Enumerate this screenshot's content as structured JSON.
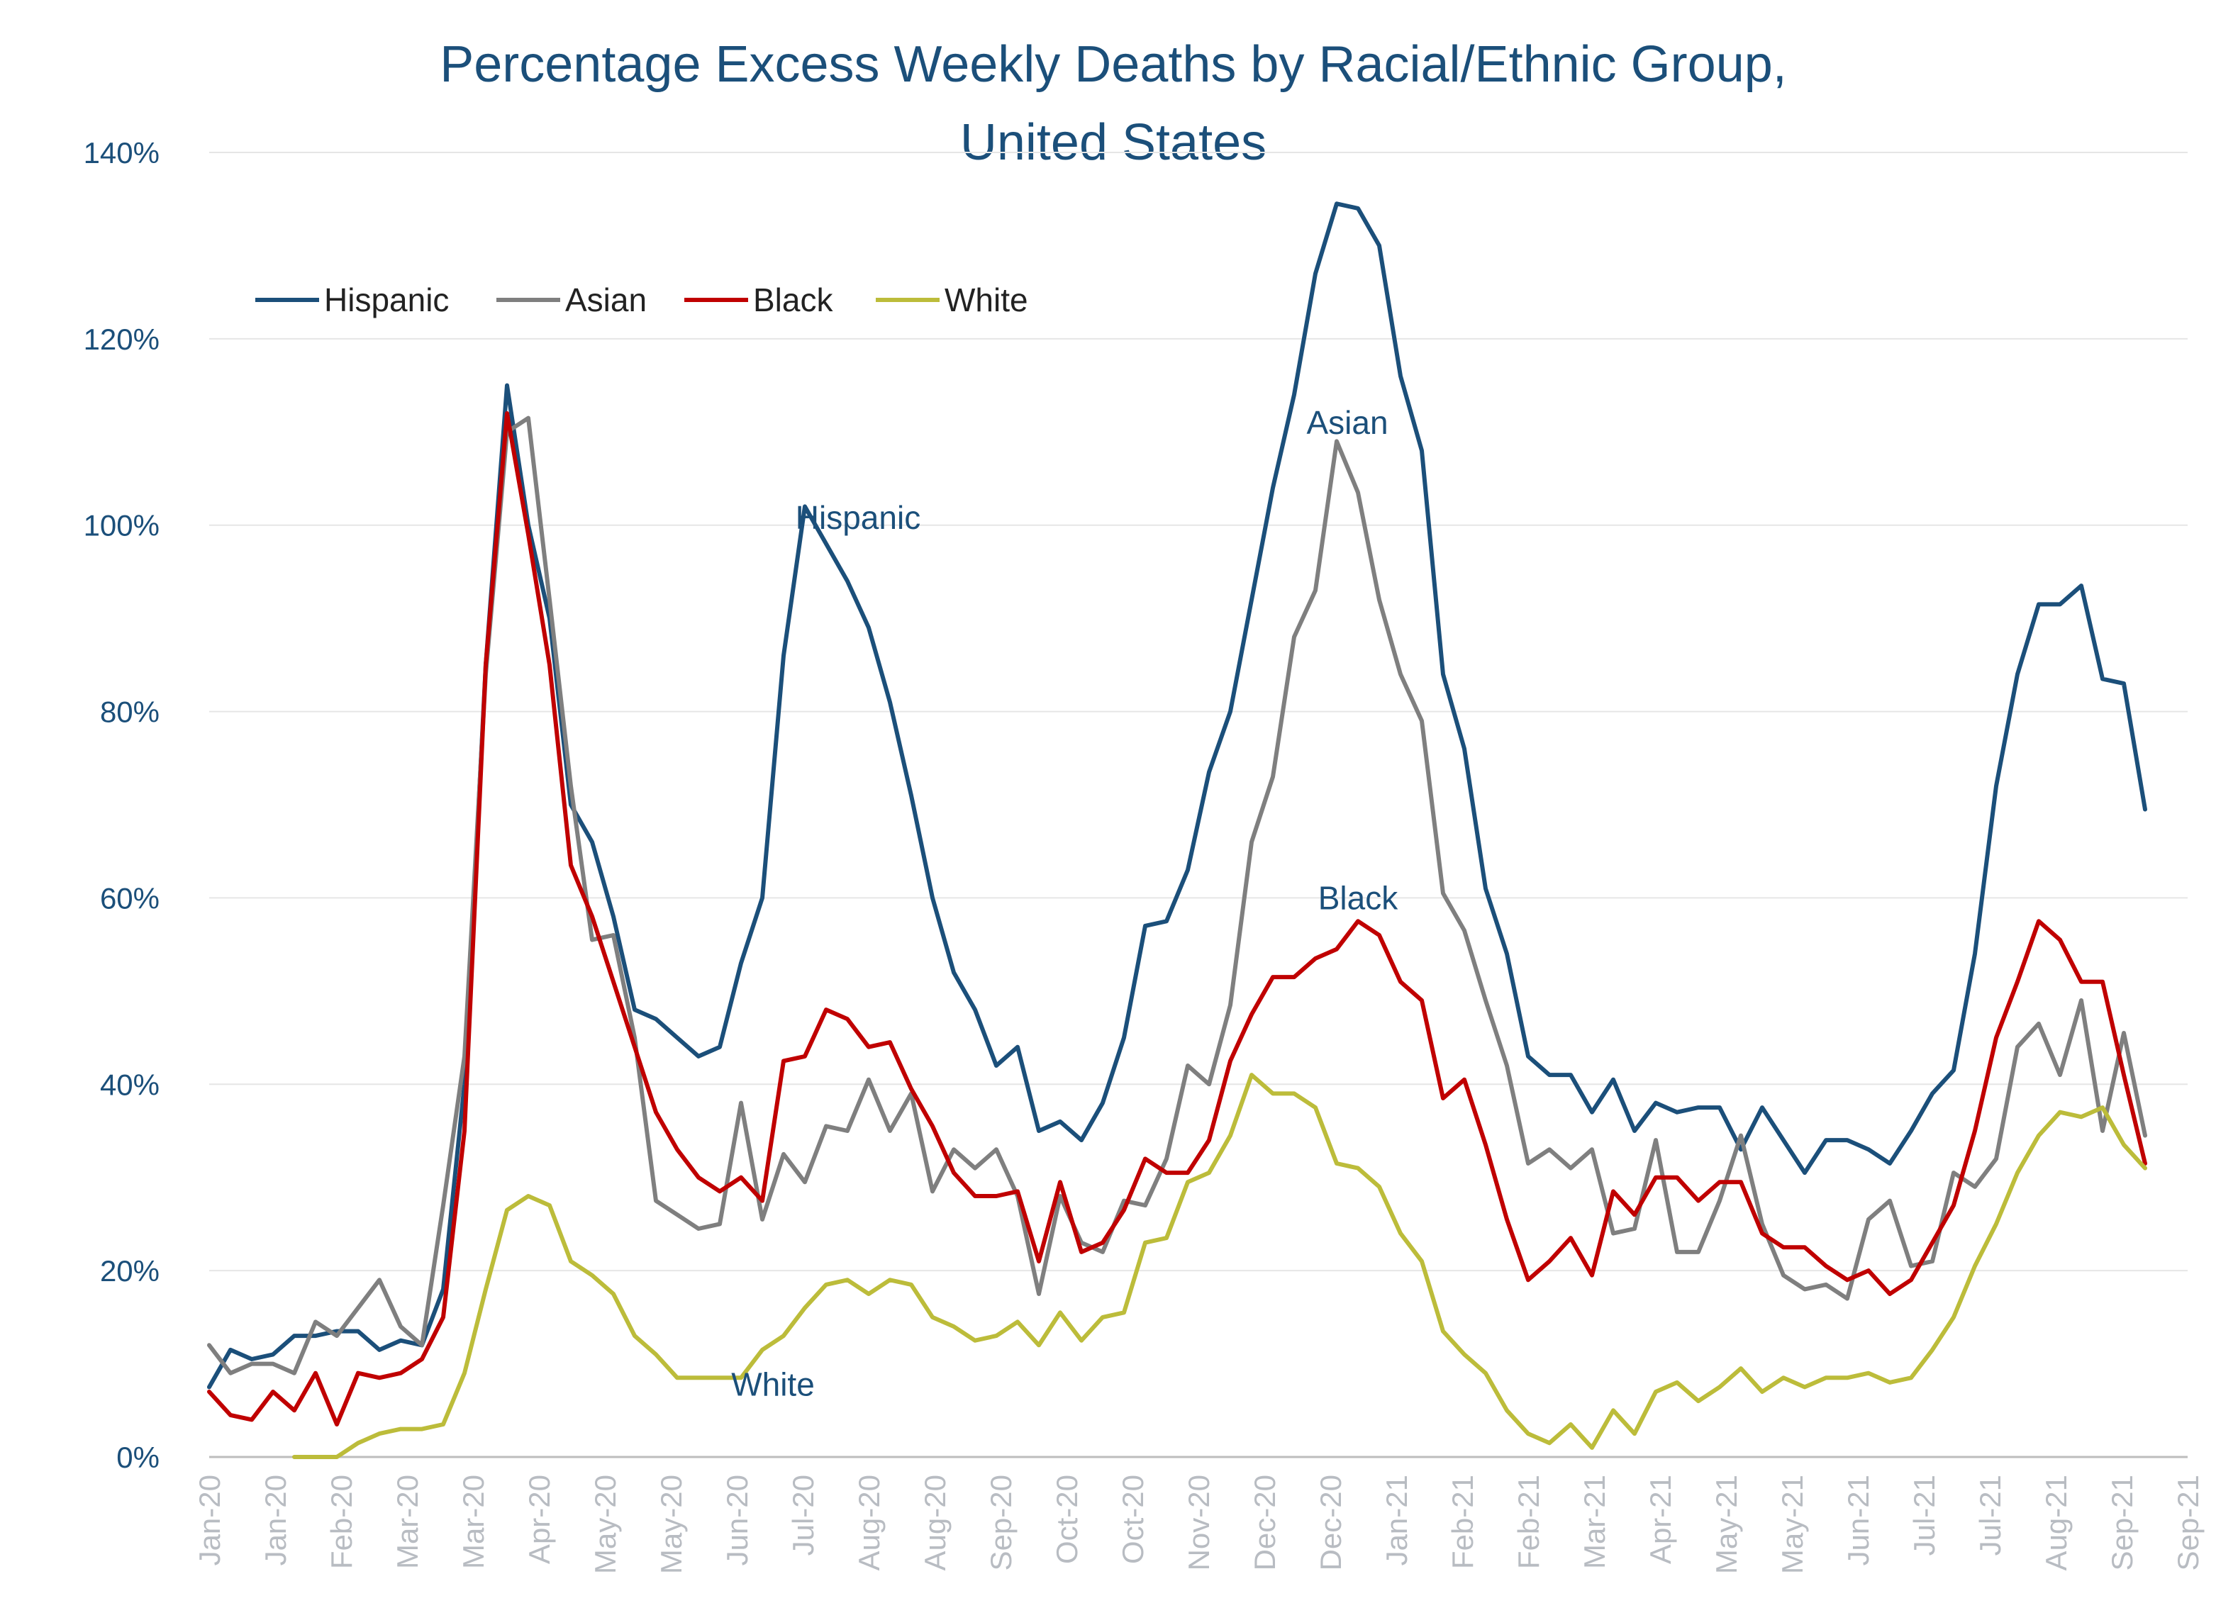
{
  "chart_data": {
    "type": "line",
    "title_line1": "Percentage Excess Weekly Deaths by Racial/Ethnic Group,",
    "title_line2": "United States",
    "ylim": [
      0,
      140
    ],
    "yticks": [
      "0%",
      "20%",
      "40%",
      "60%",
      "80%",
      "100%",
      "120%",
      "140%"
    ],
    "ytick_values": [
      0,
      20,
      40,
      60,
      80,
      100,
      120,
      140
    ],
    "grid": true,
    "legend_position": "top-left",
    "x_count": 94,
    "x_tick_labels": [
      "Jan-20",
      "Jan-20",
      "Feb-20",
      "Mar-20",
      "Mar-20",
      "Apr-20",
      "May-20",
      "May-20",
      "Jun-20",
      "Jul-20",
      "Aug-20",
      "Aug-20",
      "Sep-20",
      "Oct-20",
      "Oct-20",
      "Nov-20",
      "Dec-20",
      "Dec-20",
      "Jan-21",
      "Feb-21",
      "Feb-21",
      "Mar-21",
      "Apr-21",
      "May-21",
      "May-21",
      "Jun-21",
      "Jul-21",
      "Jul-21",
      "Aug-21",
      "Sep-21",
      "Sep-21"
    ],
    "series": [
      {
        "name": "Hispanic",
        "color": "#1b4f7a",
        "values": [
          7.5,
          11.5,
          10.5,
          11,
          13,
          13,
          13.5,
          13.5,
          11.5,
          12.5,
          12,
          18,
          40,
          85,
          115,
          100,
          90,
          70,
          66,
          58,
          48,
          47,
          45,
          43,
          44,
          53,
          60,
          86,
          102,
          98,
          94,
          89,
          81,
          71,
          60,
          52,
          48,
          42,
          44,
          35,
          36,
          34,
          38,
          45,
          57,
          57.5,
          63,
          73.5,
          80,
          92,
          104,
          114,
          127,
          134.5,
          134,
          130,
          116,
          108,
          84,
          76,
          61,
          54,
          43,
          41,
          41,
          37,
          40.5,
          35,
          38,
          37,
          37.5,
          37.5,
          33,
          37.5,
          34,
          30.5,
          34,
          34,
          33,
          31.5,
          35,
          39,
          41.5,
          54,
          72,
          84,
          91.5,
          91.5,
          93.5,
          83.5,
          83,
          69.5
        ]
      },
      {
        "name": "Asian",
        "color": "#7f7f7f",
        "values": [
          12,
          9,
          10,
          10,
          9,
          14.5,
          13,
          16,
          19,
          14,
          12,
          27,
          43,
          84,
          110,
          111.5,
          92,
          72,
          55.5,
          56,
          45,
          27.5,
          26,
          24.5,
          25,
          38,
          25.5,
          32.5,
          29.5,
          35.5,
          35,
          40.5,
          35,
          39,
          28.5,
          33,
          31,
          33,
          28,
          17.5,
          28,
          23,
          22,
          27.5,
          27,
          32,
          42,
          40,
          48.5,
          66,
          73,
          88,
          93,
          109,
          103.5,
          92,
          84,
          79,
          60.5,
          56.5,
          49,
          42,
          31.5,
          33,
          31,
          33,
          24,
          24.5,
          34,
          22,
          22,
          27.5,
          34.5,
          25,
          19.5,
          18,
          18.5,
          17,
          25.5,
          27.5,
          20.5,
          21,
          30.5,
          29,
          32,
          44,
          46.5,
          41,
          49,
          35,
          45.5,
          34.5
        ]
      },
      {
        "name": "Black",
        "color": "#c00000",
        "values": [
          7,
          4.5,
          4,
          7,
          5,
          9,
          3.5,
          9,
          8.5,
          9,
          10.5,
          15,
          35,
          85,
          112,
          99,
          85,
          63.5,
          58,
          51,
          44,
          37,
          33,
          30,
          28.5,
          30,
          27.5,
          42.5,
          43,
          48,
          47,
          44,
          44.5,
          39.5,
          35.5,
          30.5,
          28,
          28,
          28.5,
          21,
          29.5,
          22,
          23,
          26.5,
          32,
          30.5,
          30.5,
          34,
          42.5,
          47.5,
          51.5,
          51.5,
          53.5,
          54.5,
          57.5,
          56,
          51,
          49,
          38.5,
          40.5,
          33.5,
          25.5,
          19,
          21,
          23.5,
          19.5,
          28.5,
          26,
          30,
          30,
          27.5,
          29.5,
          29.5,
          24,
          22.5,
          22.5,
          20.5,
          19,
          20,
          17.5,
          19,
          23,
          27,
          35,
          45,
          51,
          57.5,
          55.5,
          51,
          51,
          41,
          31.5
        ]
      },
      {
        "name": "White",
        "color": "#bcbc3a",
        "values": [
          null,
          null,
          null,
          null,
          0,
          0,
          0,
          1.5,
          2.5,
          3,
          3,
          3.5,
          9,
          18,
          26.5,
          28,
          27,
          21,
          19.5,
          17.5,
          13,
          11,
          8.5,
          8.5,
          8.5,
          8.5,
          11.5,
          13,
          16,
          18.5,
          19,
          17.5,
          19,
          18.5,
          15,
          14,
          12.5,
          13,
          14.5,
          12,
          15.5,
          12.5,
          15,
          15.5,
          23,
          23.5,
          29.5,
          30.5,
          34.5,
          41,
          39,
          39,
          37.5,
          31.5,
          31,
          29,
          24,
          21,
          13.5,
          11,
          9,
          5,
          2.5,
          1.5,
          3.5,
          1,
          5,
          2.5,
          7,
          8,
          6,
          7.5,
          9.5,
          7,
          8.5,
          7.5,
          8.5,
          8.5,
          9,
          8,
          8.5,
          11.5,
          15,
          20.5,
          25,
          30.5,
          34.5,
          37,
          36.5,
          37.5,
          33.5,
          31
        ]
      }
    ],
    "annotations": [
      {
        "text": "Hispanic",
        "x": 30.5,
        "y": 100.8
      },
      {
        "text": "Asian",
        "x": 53.5,
        "y": 111
      },
      {
        "text": "Black",
        "x": 54,
        "y": 60
      },
      {
        "text": "White",
        "x": 26.5,
        "y": 7.8
      }
    ]
  }
}
